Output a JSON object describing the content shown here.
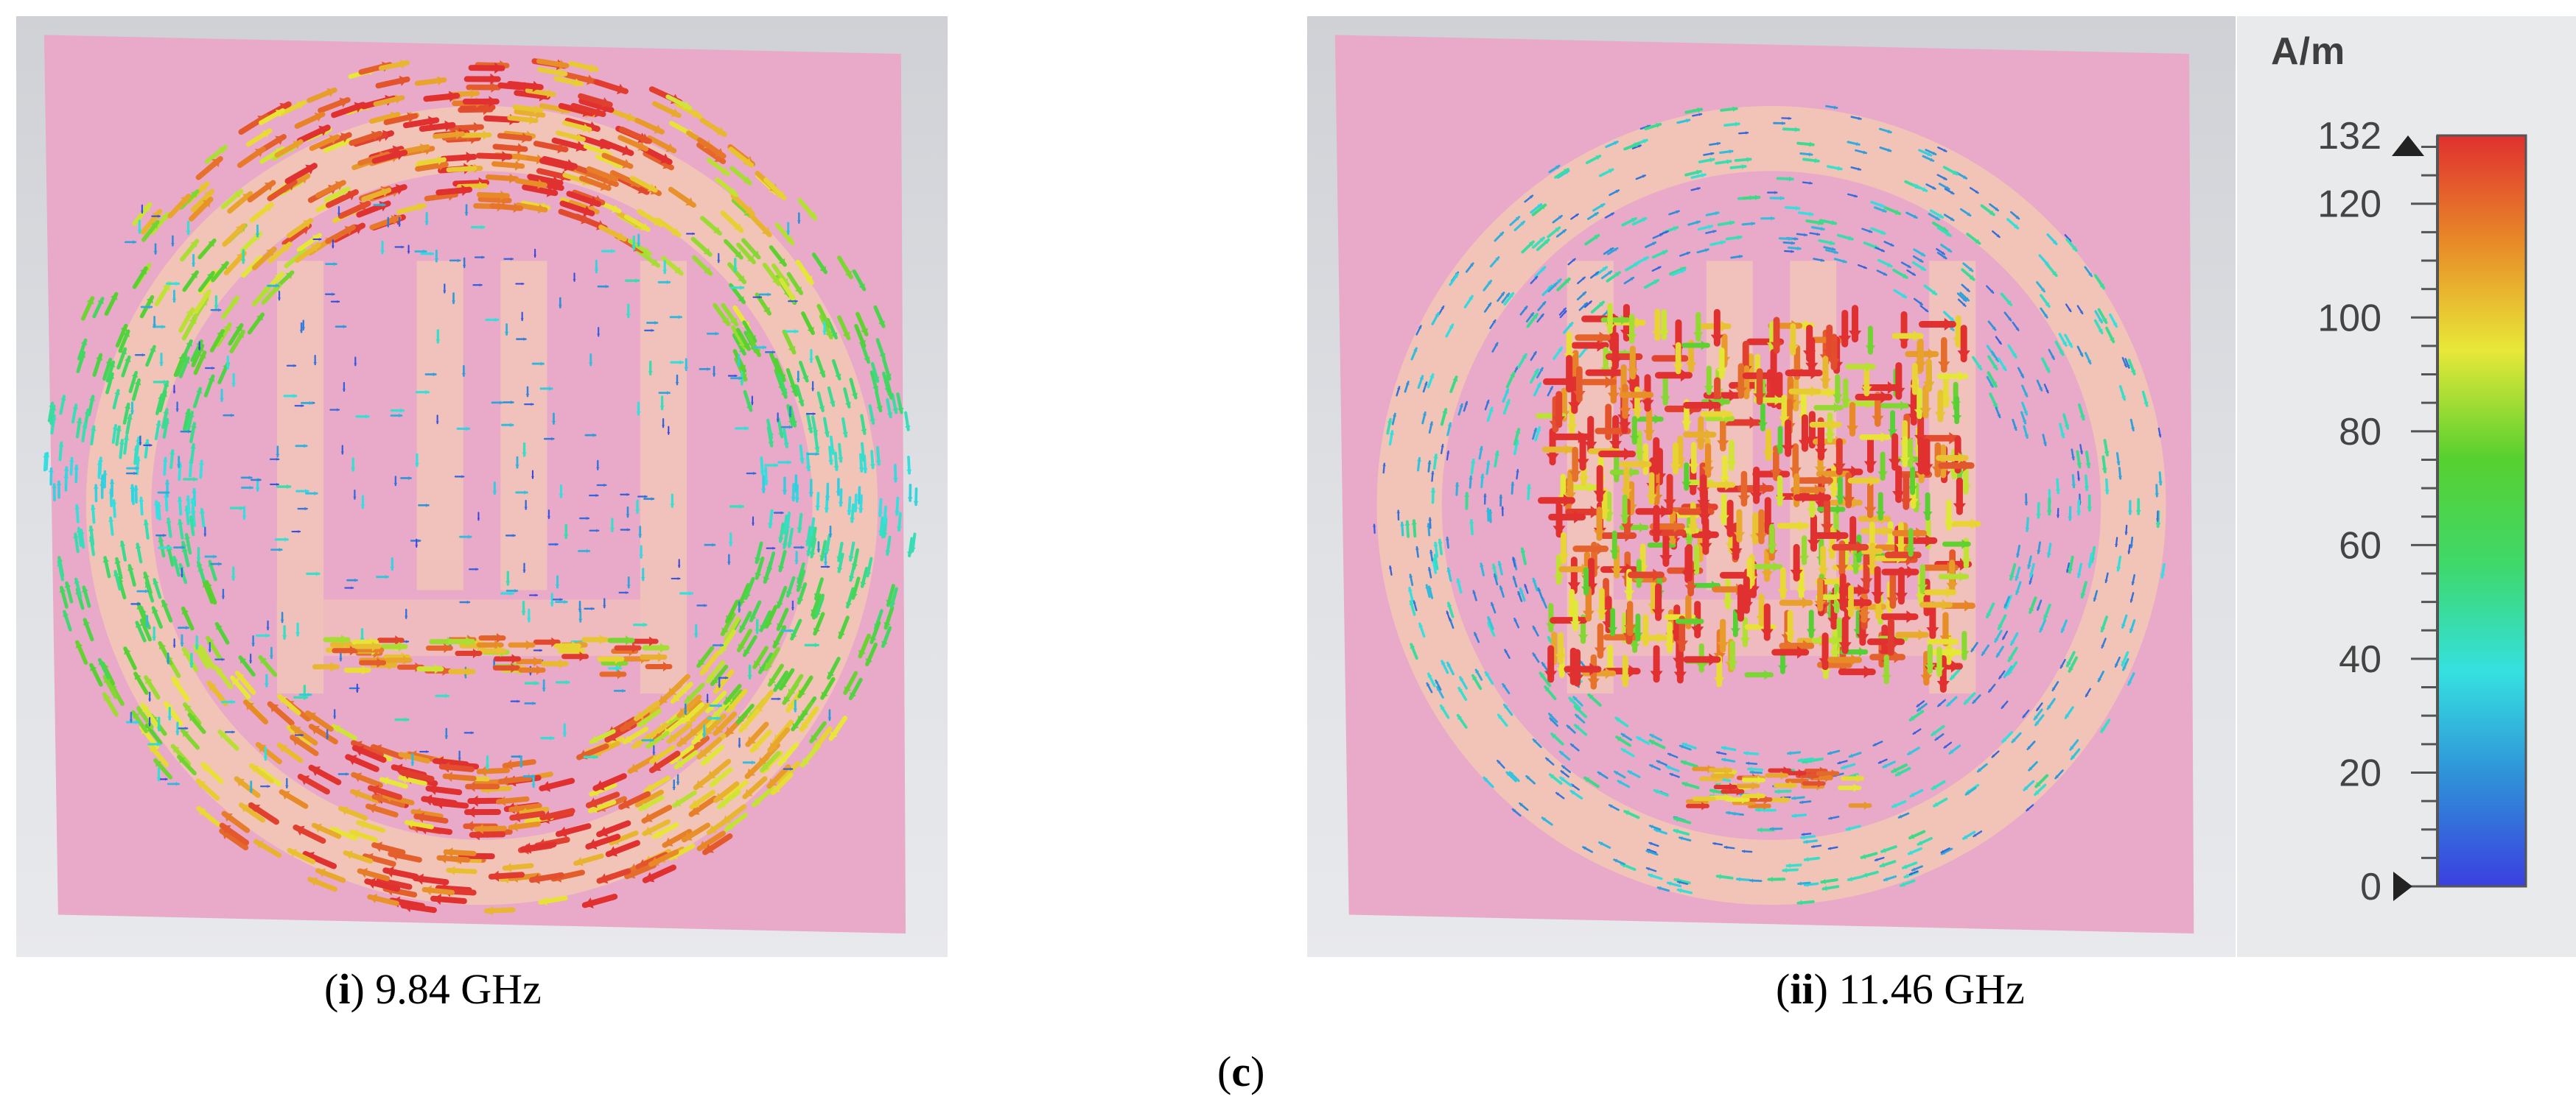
{
  "panels": [
    {
      "id": "i",
      "caption_label": "i",
      "caption_text": "9.84 GHz"
    },
    {
      "id": "ii",
      "caption_label": "ii",
      "caption_text": "11.46 GHz"
    }
  ],
  "figure_label": "c",
  "legend": {
    "unit": "A/m",
    "ticks": [
      "0",
      "20",
      "40",
      "60",
      "80",
      "100",
      "120",
      "132"
    ],
    "tick_values": [
      0,
      20,
      40,
      60,
      80,
      100,
      120,
      132
    ],
    "max": 132,
    "min": 0,
    "colors": [
      "#3b3fe0",
      "#2f8fd8",
      "#35e0e0",
      "#3fd86a",
      "#58d030",
      "#e8e838",
      "#e88a28",
      "#e03030"
    ]
  },
  "colors": {
    "substrate": "#e9a9c9",
    "patch": "#f3c9b5",
    "background_top": "#cfd1d6",
    "background_bottom": "#e8e9ec"
  }
}
